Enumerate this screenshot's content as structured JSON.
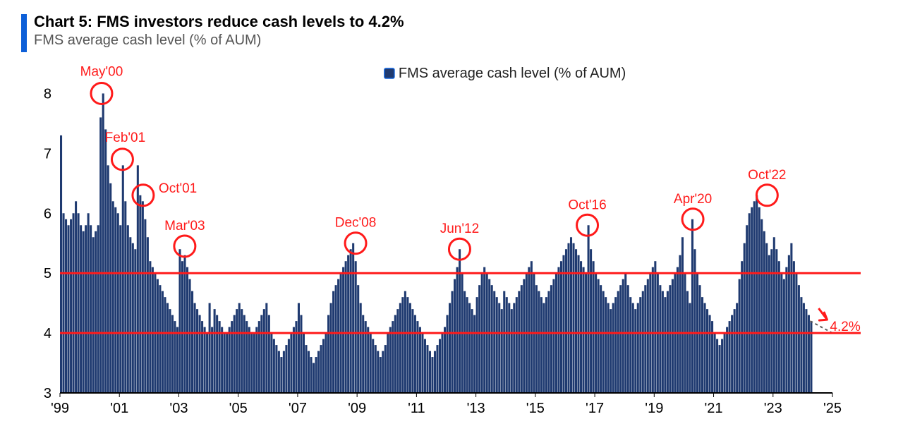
{
  "header": {
    "title": "Chart 5: FMS investors reduce cash levels to 4.2%",
    "subtitle": "FMS average cash level (% of AUM)",
    "accent_color": "#0d5fd8"
  },
  "chart": {
    "type": "area-bar",
    "legend": {
      "label": "FMS average cash level (% of AUM)",
      "swatch_fill": "#1f3a70",
      "swatch_border": "#0d5fd8",
      "text_color": "#222222"
    },
    "colors": {
      "series_fill": "#1f3a70",
      "axis": "#000000",
      "ref_lines": "#ff1a1a",
      "annotation": "#ff1a1a",
      "end_label": "#ff1a1a",
      "dashed_line": "#5b5b5b"
    },
    "y_axis": {
      "min": 3,
      "max": 8.3,
      "ticks": [
        3,
        4,
        5,
        6,
        7,
        8
      ],
      "fontsize": 20
    },
    "x_axis": {
      "start_year": 1999,
      "end_year": 2025,
      "ticks": [
        "'99",
        "'01",
        "'03",
        "'05",
        "'07",
        "'09",
        "'11",
        "'13",
        "'15",
        "'17",
        "'19",
        "'21",
        "'23",
        "'25"
      ],
      "tick_years": [
        1999,
        2001,
        2003,
        2005,
        2007,
        2009,
        2011,
        2013,
        2015,
        2017,
        2019,
        2021,
        2023,
        2025
      ],
      "fontsize": 20
    },
    "reference_lines": [
      4,
      5
    ],
    "series": [
      7.3,
      6.0,
      5.9,
      5.8,
      5.9,
      6.0,
      6.2,
      6.0,
      5.8,
      5.7,
      5.8,
      6.0,
      5.8,
      5.6,
      5.7,
      5.8,
      7.6,
      8.0,
      7.4,
      6.8,
      6.5,
      6.2,
      6.1,
      6.0,
      5.8,
      6.8,
      6.2,
      5.8,
      5.6,
      5.5,
      5.4,
      6.8,
      6.3,
      6.2,
      5.9,
      5.6,
      5.2,
      5.1,
      5.0,
      4.9,
      4.8,
      4.7,
      4.6,
      4.5,
      4.4,
      4.3,
      4.2,
      4.1,
      5.4,
      5.2,
      5.3,
      5.1,
      4.9,
      4.7,
      4.5,
      4.4,
      4.3,
      4.2,
      4.1,
      4.0,
      4.5,
      4.1,
      4.4,
      4.3,
      4.2,
      4.1,
      4.0,
      4.0,
      4.1,
      4.2,
      4.3,
      4.4,
      4.5,
      4.4,
      4.3,
      4.2,
      4.1,
      4.0,
      4.0,
      4.1,
      4.2,
      4.3,
      4.4,
      4.5,
      4.3,
      4.0,
      3.9,
      3.8,
      3.7,
      3.6,
      3.7,
      3.8,
      3.9,
      4.0,
      4.1,
      4.2,
      4.5,
      4.3,
      4.0,
      3.8,
      3.7,
      3.6,
      3.5,
      3.6,
      3.7,
      3.8,
      3.9,
      4.0,
      4.3,
      4.5,
      4.7,
      4.8,
      4.9,
      5.0,
      5.1,
      5.2,
      5.3,
      5.4,
      5.5,
      5.2,
      4.8,
      4.5,
      4.3,
      4.2,
      4.1,
      4.0,
      3.9,
      3.8,
      3.7,
      3.6,
      3.7,
      3.8,
      4.0,
      4.1,
      4.2,
      4.3,
      4.4,
      4.5,
      4.6,
      4.7,
      4.6,
      4.5,
      4.4,
      4.3,
      4.2,
      4.1,
      4.0,
      3.9,
      3.8,
      3.7,
      3.6,
      3.7,
      3.8,
      3.9,
      4.0,
      4.1,
      4.3,
      4.5,
      4.7,
      4.9,
      5.1,
      5.4,
      5.0,
      4.7,
      4.6,
      4.5,
      4.4,
      4.3,
      4.6,
      4.8,
      5.0,
      5.1,
      5.0,
      4.9,
      4.8,
      4.7,
      4.6,
      4.5,
      4.4,
      4.7,
      4.6,
      4.5,
      4.4,
      4.5,
      4.6,
      4.7,
      4.8,
      4.9,
      5.0,
      5.1,
      5.2,
      5.0,
      4.8,
      4.7,
      4.6,
      4.5,
      4.6,
      4.7,
      4.8,
      4.9,
      5.0,
      5.1,
      5.2,
      5.3,
      5.4,
      5.5,
      5.6,
      5.5,
      5.4,
      5.3,
      5.2,
      5.1,
      5.0,
      5.8,
      5.4,
      5.2,
      5.0,
      4.9,
      4.8,
      4.7,
      4.6,
      4.5,
      4.4,
      4.5,
      4.6,
      4.7,
      4.8,
      4.9,
      5.0,
      4.8,
      4.6,
      4.5,
      4.4,
      4.5,
      4.6,
      4.7,
      4.8,
      4.9,
      5.0,
      5.1,
      5.2,
      5.0,
      4.8,
      4.7,
      4.6,
      4.7,
      4.8,
      4.9,
      5.0,
      5.1,
      5.3,
      5.6,
      5.0,
      4.7,
      4.5,
      5.9,
      5.4,
      5.0,
      4.8,
      4.6,
      4.5,
      4.4,
      4.3,
      4.2,
      4.0,
      3.9,
      3.8,
      3.9,
      4.0,
      4.1,
      4.2,
      4.3,
      4.4,
      4.5,
      4.9,
      5.2,
      5.5,
      5.8,
      6.0,
      6.1,
      6.2,
      6.3,
      6.1,
      5.9,
      5.7,
      5.5,
      5.3,
      5.4,
      5.6,
      5.4,
      5.2,
      5.0,
      4.9,
      5.1,
      5.3,
      5.5,
      5.2,
      5.0,
      4.8,
      4.6,
      4.5,
      4.4,
      4.3,
      4.2
    ],
    "annotations": [
      {
        "label": "May'00",
        "year": 2000.4,
        "y": 8.0
      },
      {
        "label": "Feb'01",
        "year": 2001.1,
        "y": 6.9
      },
      {
        "label": "Oct'01",
        "year": 2001.8,
        "y": 6.3
      },
      {
        "label": "Mar'03",
        "year": 2003.2,
        "y": 5.45
      },
      {
        "label": "Dec'08",
        "year": 2008.95,
        "y": 5.5
      },
      {
        "label": "Jun'12",
        "year": 2012.45,
        "y": 5.4
      },
      {
        "label": "Oct'16",
        "year": 2016.75,
        "y": 5.8
      },
      {
        "label": "Apr'20",
        "year": 2020.3,
        "y": 5.9
      },
      {
        "label": "Oct'22",
        "year": 2022.8,
        "y": 6.3
      }
    ],
    "end_point": {
      "year": 2024.25,
      "value": 4.2,
      "label": "4.2%"
    },
    "dashed_tail": {
      "from_year": 2024.25,
      "to_year": 2025.0,
      "from_y": 4.2,
      "to_y": 4.0
    },
    "circle_radius": 15,
    "circle_stroke_width": 3,
    "ref_line_width": 3,
    "bar_gap": 0.15
  }
}
